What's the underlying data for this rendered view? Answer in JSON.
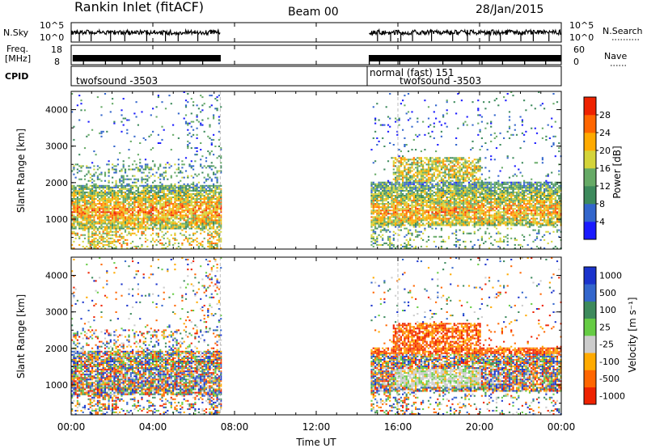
{
  "header": {
    "station": "Rankin Inlet (fitACF)",
    "beam": "Beam 00",
    "date": "28/Jan/2015"
  },
  "strip": {
    "nsky_label": "N.Sky",
    "nsky_ticks": [
      "10^5",
      "10^0"
    ],
    "nsearch_label": "N.Search",
    "nsearch_ticks": [
      "10^5",
      "10^0"
    ],
    "freq_label_line1": "Freq.",
    "freq_label_line2": "[MHz]",
    "freq_ticks": [
      "18",
      "8"
    ],
    "nave_label": "Nave",
    "nave_ticks": [
      "60",
      "0"
    ],
    "cpid_label": "CPID",
    "cpid_segments": [
      "twofsound -3503",
      "normal (fast) 151",
      "twofsound -3503"
    ]
  },
  "colors": {
    "power": [
      "#1a1aff",
      "#3366cc",
      "#3d8a5c",
      "#66aa66",
      "#d4d43a",
      "#ffaa00",
      "#ff6600",
      "#ee2200"
    ],
    "velocity": [
      "#ee2200",
      "#ff6600",
      "#ffaa00",
      "#cccccc",
      "#66cc44",
      "#3d8a5c",
      "#3366cc",
      "#1a33cc"
    ]
  },
  "chart_data": [
    {
      "type": "heatmap",
      "name": "power",
      "xlabel": "",
      "ylabel": "Slant Range [km]",
      "x_ticks": [
        "00:00",
        "04:00",
        "08:00",
        "12:00",
        "16:00",
        "20:00",
        "00:00"
      ],
      "xlim_hours": [
        0,
        24
      ],
      "y_ticks": [
        1000,
        2000,
        3000,
        4000
      ],
      "ylim": [
        180,
        4500
      ],
      "colorbar_label": "Power [dB]",
      "colorbar_ticks": [
        4,
        8,
        12,
        16,
        20,
        24,
        28
      ],
      "data_gaps_hours": [
        [
          7.3,
          14.6
        ]
      ]
    },
    {
      "type": "heatmap",
      "name": "velocity",
      "xlabel": "Time UT",
      "ylabel": "Slant Range [km]",
      "x_ticks": [
        "00:00",
        "04:00",
        "08:00",
        "12:00",
        "16:00",
        "20:00",
        "00:00"
      ],
      "xlim_hours": [
        0,
        24
      ],
      "y_ticks": [
        1000,
        2000,
        3000,
        4000
      ],
      "ylim": [
        180,
        4500
      ],
      "colorbar_label": "Velocity [m s⁻¹]",
      "colorbar_ticks": [
        1000,
        500,
        100,
        25,
        -25,
        -100,
        -500,
        -1000
      ],
      "data_gaps_hours": [
        [
          7.3,
          14.6
        ]
      ]
    }
  ]
}
